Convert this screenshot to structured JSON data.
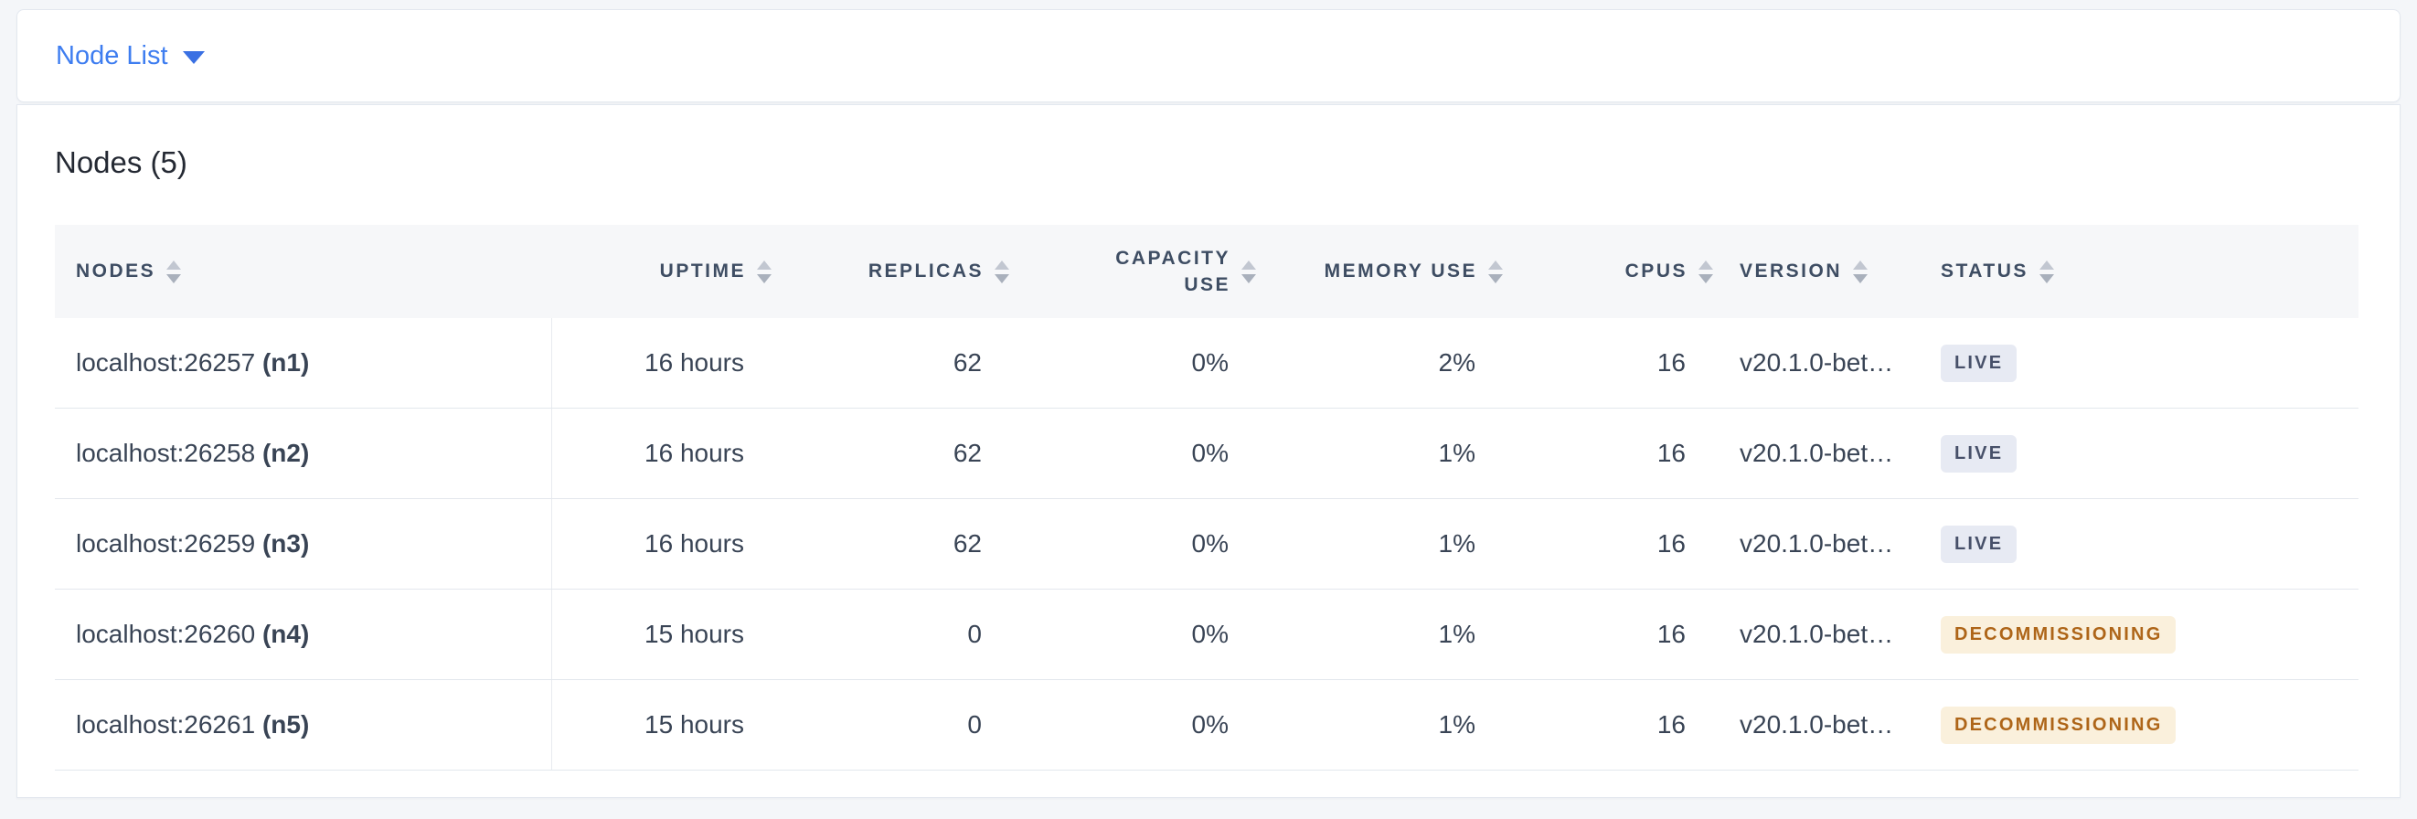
{
  "view_selector": {
    "label": "Node List"
  },
  "panel": {
    "title": "Nodes (5)"
  },
  "table": {
    "columns": [
      {
        "key": "nodes",
        "label": "NODES",
        "align": "left"
      },
      {
        "key": "uptime",
        "label": "UPTIME",
        "align": "right"
      },
      {
        "key": "replicas",
        "label": "REPLICAS",
        "align": "right"
      },
      {
        "key": "capacity_use",
        "label": "CAPACITY USE",
        "align": "right"
      },
      {
        "key": "memory_use",
        "label": "MEMORY USE",
        "align": "right"
      },
      {
        "key": "cpus",
        "label": "CPUS",
        "align": "right"
      },
      {
        "key": "version",
        "label": "VERSION",
        "align": "left"
      },
      {
        "key": "status",
        "label": "STATUS",
        "align": "left"
      }
    ],
    "rows": [
      {
        "address": "localhost:26257",
        "node_id": "(n1)",
        "uptime": "16 hours",
        "replicas": "62",
        "capacity_use": "0%",
        "memory_use": "2%",
        "cpus": "16",
        "version": "v20.1.0-bet…",
        "status": "LIVE",
        "status_kind": "live"
      },
      {
        "address": "localhost:26258",
        "node_id": "(n2)",
        "uptime": "16 hours",
        "replicas": "62",
        "capacity_use": "0%",
        "memory_use": "1%",
        "cpus": "16",
        "version": "v20.1.0-bet…",
        "status": "LIVE",
        "status_kind": "live"
      },
      {
        "address": "localhost:26259",
        "node_id": "(n3)",
        "uptime": "16 hours",
        "replicas": "62",
        "capacity_use": "0%",
        "memory_use": "1%",
        "cpus": "16",
        "version": "v20.1.0-bet…",
        "status": "LIVE",
        "status_kind": "live"
      },
      {
        "address": "localhost:26260",
        "node_id": "(n4)",
        "uptime": "15 hours",
        "replicas": "0",
        "capacity_use": "0%",
        "memory_use": "1%",
        "cpus": "16",
        "version": "v20.1.0-bet…",
        "status": "DECOMMISSIONING",
        "status_kind": "decommissioning"
      },
      {
        "address": "localhost:26261",
        "node_id": "(n5)",
        "uptime": "15 hours",
        "replicas": "0",
        "capacity_use": "0%",
        "memory_use": "1%",
        "cpus": "16",
        "version": "v20.1.0-bet…",
        "status": "DECOMMISSIONING",
        "status_kind": "decommissioning"
      }
    ]
  },
  "colors": {
    "accent_blue": "#3e7df0",
    "header_text": "#3e4d63",
    "cell_text": "#394455",
    "badge_live_bg": "#e7eaf3",
    "badge_live_fg": "#475069",
    "badge_decommissioning_bg": "#faf0dc",
    "badge_decommissioning_fg": "#ae6518"
  },
  "icons": {
    "chevron_down": "chevron-down-icon",
    "sort_arrows": "sort-arrows-icon"
  }
}
